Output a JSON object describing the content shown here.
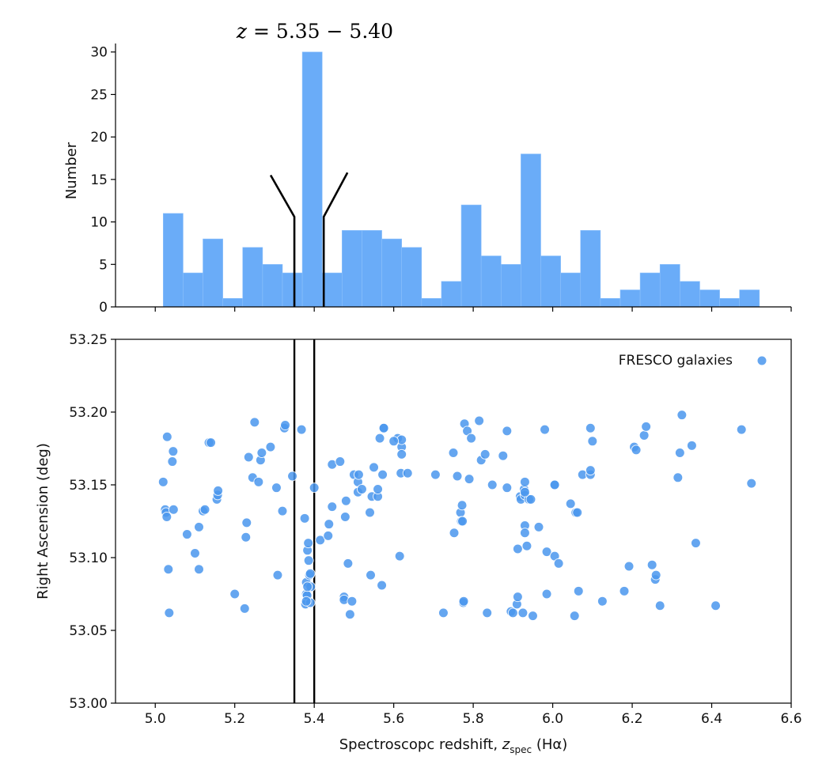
{
  "chart_data": [
    {
      "type": "bar",
      "subtype": "histogram",
      "ylabel": "Number",
      "ylim": [
        0,
        31
      ],
      "yticks": [
        "0",
        "5",
        "10",
        "15",
        "20",
        "25",
        "30"
      ],
      "xlim": [
        4.9,
        6.6
      ],
      "bin_width": 0.05,
      "bin_starts": [
        5.02,
        5.07,
        5.12,
        5.17,
        5.22,
        5.27,
        5.32,
        5.37,
        5.42,
        5.47,
        5.52,
        5.57,
        5.62,
        5.67,
        5.72,
        5.77,
        5.82,
        5.87,
        5.92,
        5.97,
        6.02,
        6.07,
        6.12,
        6.17,
        6.22,
        6.27,
        6.32,
        6.37,
        6.42,
        6.47
      ],
      "values": [
        11,
        4,
        8,
        1,
        7,
        5,
        4,
        30,
        4,
        9,
        9,
        8,
        7,
        1,
        3,
        12,
        6,
        5,
        18,
        6,
        4,
        9,
        1,
        2,
        4,
        5,
        3,
        2,
        1,
        2
      ],
      "color": "#6aacf8",
      "annotation": {
        "label_prefix": "z",
        "label_range": " = 5.35 − 5.40",
        "z_low": 5.35,
        "z_high": 5.4
      }
    },
    {
      "type": "scatter",
      "xlabel_main": "Spectroscopc redshift, ",
      "xlabel_var": "z",
      "xlabel_sub": "spec",
      "xlabel_tail": " (Hα)",
      "ylabel": "Right Ascension (deg)",
      "xlim": [
        4.9,
        6.6
      ],
      "ylim": [
        53.0,
        53.25
      ],
      "xticks": [
        "5.0",
        "5.2",
        "5.4",
        "5.6",
        "5.8",
        "6.0",
        "6.2",
        "6.4",
        "6.6"
      ],
      "yticks": [
        "53.00",
        "53.05",
        "53.10",
        "53.15",
        "53.20",
        "53.25"
      ],
      "vlines": [
        5.35,
        5.4
      ],
      "legend": {
        "label": "FRESCO galaxies",
        "position": "top-right"
      },
      "color": "#4b97ee",
      "points": [
        [
          5.02,
          53.152
        ],
        [
          5.025,
          53.133
        ],
        [
          5.027,
          53.131
        ],
        [
          5.029,
          53.128
        ],
        [
          5.03,
          53.183
        ],
        [
          5.033,
          53.092
        ],
        [
          5.035,
          53.062
        ],
        [
          5.043,
          53.166
        ],
        [
          5.045,
          53.173
        ],
        [
          5.046,
          53.133
        ],
        [
          5.08,
          53.116
        ],
        [
          5.1,
          53.103
        ],
        [
          5.11,
          53.121
        ],
        [
          5.11,
          53.092
        ],
        [
          5.12,
          53.132
        ],
        [
          5.125,
          53.133
        ],
        [
          5.135,
          53.179
        ],
        [
          5.14,
          53.179
        ],
        [
          5.155,
          53.14
        ],
        [
          5.157,
          53.143
        ],
        [
          5.158,
          53.146
        ],
        [
          5.2,
          53.075
        ],
        [
          5.225,
          53.065
        ],
        [
          5.228,
          53.114
        ],
        [
          5.23,
          53.124
        ],
        [
          5.235,
          53.169
        ],
        [
          5.245,
          53.155
        ],
        [
          5.25,
          53.193
        ],
        [
          5.26,
          53.152
        ],
        [
          5.265,
          53.167
        ],
        [
          5.268,
          53.172
        ],
        [
          5.29,
          53.176
        ],
        [
          5.305,
          53.148
        ],
        [
          5.308,
          53.088
        ],
        [
          5.32,
          53.132
        ],
        [
          5.325,
          53.189
        ],
        [
          5.327,
          53.191
        ],
        [
          5.345,
          53.156
        ],
        [
          5.368,
          53.188
        ],
        [
          5.376,
          53.127
        ],
        [
          5.378,
          53.068
        ],
        [
          5.38,
          53.075
        ],
        [
          5.38,
          53.083
        ],
        [
          5.382,
          53.074
        ],
        [
          5.383,
          53.105
        ],
        [
          5.385,
          53.11
        ],
        [
          5.386,
          53.098
        ],
        [
          5.388,
          53.088
        ],
        [
          5.39,
          53.089
        ],
        [
          5.391,
          53.08
        ],
        [
          5.39,
          53.069
        ],
        [
          5.4,
          53.148
        ],
        [
          5.415,
          53.112
        ],
        [
          5.435,
          53.115
        ],
        [
          5.437,
          53.123
        ],
        [
          5.445,
          53.135
        ],
        [
          5.445,
          53.164
        ],
        [
          5.465,
          53.166
        ],
        [
          5.475,
          53.073
        ],
        [
          5.475,
          53.071
        ],
        [
          5.478,
          53.128
        ],
        [
          5.48,
          53.139
        ],
        [
          5.485,
          53.096
        ],
        [
          5.49,
          53.061
        ],
        [
          5.495,
          53.07
        ],
        [
          5.5,
          53.157
        ],
        [
          5.51,
          53.145
        ],
        [
          5.51,
          53.152
        ],
        [
          5.512,
          53.157
        ],
        [
          5.52,
          53.147
        ],
        [
          5.54,
          53.131
        ],
        [
          5.542,
          53.088
        ],
        [
          5.545,
          53.142
        ],
        [
          5.55,
          53.162
        ],
        [
          5.56,
          53.142
        ],
        [
          5.56,
          53.147
        ],
        [
          5.565,
          53.182
        ],
        [
          5.57,
          53.081
        ],
        [
          5.572,
          53.157
        ],
        [
          5.575,
          53.189
        ],
        [
          5.575,
          53.189
        ],
        [
          5.61,
          53.182
        ],
        [
          5.615,
          53.101
        ],
        [
          5.618,
          53.158
        ],
        [
          5.62,
          53.176
        ],
        [
          5.62,
          53.181
        ],
        [
          5.62,
          53.171
        ],
        [
          5.635,
          53.158
        ],
        [
          5.705,
          53.157
        ],
        [
          5.725,
          53.062
        ],
        [
          5.75,
          53.172
        ],
        [
          5.752,
          53.117
        ],
        [
          5.76,
          53.156
        ],
        [
          5.768,
          53.131
        ],
        [
          5.77,
          53.125
        ],
        [
          5.772,
          53.136
        ],
        [
          5.773,
          53.125
        ],
        [
          5.775,
          53.069
        ],
        [
          5.776,
          53.07
        ],
        [
          5.778,
          53.192
        ],
        [
          5.785,
          53.187
        ],
        [
          5.79,
          53.154
        ],
        [
          5.795,
          53.182
        ],
        [
          5.815,
          53.194
        ],
        [
          5.82,
          53.167
        ],
        [
          5.83,
          53.171
        ],
        [
          5.835,
          53.062
        ],
        [
          5.848,
          53.15
        ],
        [
          5.875,
          53.17
        ],
        [
          5.885,
          53.187
        ],
        [
          5.885,
          53.148
        ],
        [
          5.895,
          53.063
        ],
        [
          5.9,
          53.062
        ],
        [
          5.91,
          53.068
        ],
        [
          5.912,
          53.106
        ],
        [
          5.912,
          53.073
        ],
        [
          5.918,
          53.142
        ],
        [
          5.92,
          53.14
        ],
        [
          5.925,
          53.062
        ],
        [
          5.928,
          53.147
        ],
        [
          5.93,
          53.143
        ],
        [
          5.93,
          53.122
        ],
        [
          5.93,
          53.117
        ],
        [
          5.93,
          53.152
        ],
        [
          5.935,
          53.108
        ],
        [
          5.94,
          53.14
        ],
        [
          5.945,
          53.14
        ],
        [
          5.95,
          53.06
        ],
        [
          5.965,
          53.121
        ],
        [
          5.98,
          53.188
        ],
        [
          5.985,
          53.104
        ],
        [
          5.985,
          53.075
        ],
        [
          6.005,
          53.15
        ],
        [
          6.005,
          53.15
        ],
        [
          6.005,
          53.101
        ],
        [
          6.015,
          53.096
        ],
        [
          6.045,
          53.137
        ],
        [
          6.055,
          53.06
        ],
        [
          6.058,
          53.131
        ],
        [
          6.062,
          53.131
        ],
        [
          6.065,
          53.077
        ],
        [
          6.075,
          53.157
        ],
        [
          6.095,
          53.157
        ],
        [
          6.095,
          53.16
        ],
        [
          6.1,
          53.18
        ],
        [
          6.125,
          53.07
        ],
        [
          6.18,
          53.077
        ],
        [
          6.192,
          53.094
        ],
        [
          6.205,
          53.176
        ],
        [
          6.21,
          53.174
        ],
        [
          6.23,
          53.184
        ],
        [
          6.235,
          53.19
        ],
        [
          6.25,
          53.095
        ],
        [
          6.258,
          53.085
        ],
        [
          6.26,
          53.088
        ],
        [
          6.27,
          53.067
        ],
        [
          6.315,
          53.155
        ],
        [
          6.32,
          53.172
        ],
        [
          6.325,
          53.198
        ],
        [
          6.35,
          53.177
        ],
        [
          6.36,
          53.11
        ],
        [
          6.41,
          53.067
        ],
        [
          6.475,
          53.188
        ],
        [
          6.5,
          53.151
        ],
        [
          5.38,
          53.07
        ],
        [
          5.383,
          53.08
        ],
        [
          6.095,
          53.189
        ],
        [
          5.93,
          53.145
        ],
        [
          5.6,
          53.18
        ]
      ]
    }
  ]
}
